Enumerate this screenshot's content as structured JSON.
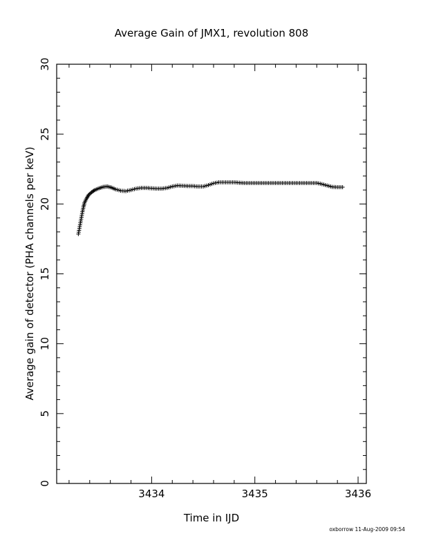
{
  "chart_data": {
    "type": "scatter",
    "title": "Average Gain of JMX1, revolution 808",
    "xlabel": "Time in IJD",
    "ylabel": "Average gain of detector (PHA channels per keV)",
    "xlim": [
      3433.08,
      3436.08
    ],
    "ylim": [
      0,
      30
    ],
    "x_ticks": [
      3434,
      3435,
      3436
    ],
    "y_ticks": [
      0,
      5,
      10,
      15,
      20,
      25,
      30
    ],
    "grid": false,
    "marker": "plus",
    "points": [
      [
        3433.29,
        17.85
      ],
      [
        3433.3,
        18.25
      ],
      [
        3433.31,
        18.65
      ],
      [
        3433.32,
        19.05
      ],
      [
        3433.33,
        19.45
      ],
      [
        3433.34,
        19.8
      ],
      [
        3433.35,
        20.1
      ],
      [
        3433.37,
        20.4
      ],
      [
        3433.39,
        20.65
      ],
      [
        3433.42,
        20.85
      ],
      [
        3433.45,
        21.0
      ],
      [
        3433.49,
        21.12
      ],
      [
        3433.53,
        21.22
      ],
      [
        3433.57,
        21.25
      ],
      [
        3433.61,
        21.18
      ],
      [
        3433.65,
        21.05
      ],
      [
        3433.7,
        20.95
      ],
      [
        3433.75,
        20.92
      ],
      [
        3433.8,
        21.0
      ],
      [
        3433.85,
        21.1
      ],
      [
        3433.9,
        21.15
      ],
      [
        3433.95,
        21.15
      ],
      [
        3434.0,
        21.12
      ],
      [
        3434.05,
        21.1
      ],
      [
        3434.1,
        21.1
      ],
      [
        3434.15,
        21.15
      ],
      [
        3434.2,
        21.25
      ],
      [
        3434.25,
        21.32
      ],
      [
        3434.3,
        21.3
      ],
      [
        3434.35,
        21.28
      ],
      [
        3434.4,
        21.28
      ],
      [
        3434.45,
        21.25
      ],
      [
        3434.5,
        21.25
      ],
      [
        3434.55,
        21.35
      ],
      [
        3434.6,
        21.48
      ],
      [
        3434.65,
        21.55
      ],
      [
        3434.7,
        21.55
      ],
      [
        3434.75,
        21.55
      ],
      [
        3434.8,
        21.55
      ],
      [
        3434.85,
        21.52
      ],
      [
        3434.9,
        21.5
      ],
      [
        3434.95,
        21.5
      ],
      [
        3435.0,
        21.5
      ],
      [
        3435.05,
        21.5
      ],
      [
        3435.1,
        21.5
      ],
      [
        3435.15,
        21.5
      ],
      [
        3435.2,
        21.5
      ],
      [
        3435.25,
        21.5
      ],
      [
        3435.3,
        21.5
      ],
      [
        3435.35,
        21.5
      ],
      [
        3435.4,
        21.5
      ],
      [
        3435.45,
        21.5
      ],
      [
        3435.5,
        21.5
      ],
      [
        3435.55,
        21.5
      ],
      [
        3435.6,
        21.5
      ],
      [
        3435.65,
        21.42
      ],
      [
        3435.7,
        21.32
      ],
      [
        3435.75,
        21.22
      ],
      [
        3435.8,
        21.2
      ],
      [
        3435.85,
        21.2
      ]
    ],
    "footer": "oxborrow 11-Aug-2009 09:54"
  }
}
